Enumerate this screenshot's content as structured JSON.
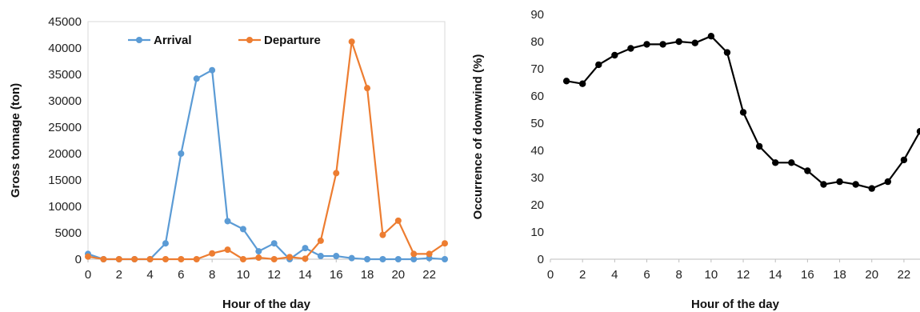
{
  "chart_data": [
    {
      "type": "line",
      "title": "",
      "xlabel": "Hour of the day",
      "ylabel": "Gross tonnage (ton)",
      "xlim": [
        0,
        23
      ],
      "ylim": [
        0,
        45000
      ],
      "x_ticks": [
        0,
        2,
        4,
        6,
        8,
        10,
        12,
        14,
        16,
        18,
        20,
        22
      ],
      "y_ticks": [
        0,
        5000,
        10000,
        15000,
        20000,
        25000,
        30000,
        35000,
        40000,
        45000
      ],
      "grid": false,
      "legend_placement": "top-center",
      "x": [
        0,
        1,
        2,
        3,
        4,
        5,
        6,
        7,
        8,
        9,
        10,
        11,
        12,
        13,
        14,
        15,
        16,
        17,
        18,
        19,
        20,
        21,
        22,
        23
      ],
      "series": [
        {
          "name": "Arrival",
          "color": "#5B9BD5",
          "values": [
            1000,
            0,
            0,
            0,
            0,
            3000,
            20000,
            34200,
            35800,
            7200,
            5700,
            1500,
            3000,
            0,
            2100,
            600,
            600,
            200,
            0,
            0,
            0,
            0,
            200,
            0
          ]
        },
        {
          "name": "Departure",
          "color": "#ED7D31",
          "values": [
            500,
            0,
            0,
            0,
            0,
            0,
            0,
            0,
            1100,
            1800,
            0,
            300,
            0,
            400,
            100,
            3500,
            16300,
            41200,
            32400,
            4600,
            7300,
            1000,
            1000,
            3000
          ]
        }
      ]
    },
    {
      "type": "line",
      "title": "",
      "xlabel": "Hour of the day",
      "ylabel": "Occurrence of downwind (%)",
      "xlim": [
        0,
        23
      ],
      "ylim": [
        0,
        90
      ],
      "x_ticks": [
        0,
        2,
        4,
        6,
        8,
        10,
        12,
        14,
        16,
        18,
        20,
        22
      ],
      "y_ticks": [
        0,
        10,
        20,
        30,
        40,
        50,
        60,
        70,
        80,
        90
      ],
      "grid": false,
      "x": [
        1,
        2,
        3,
        4,
        5,
        6,
        7,
        8,
        9,
        10,
        11,
        12,
        13,
        14,
        15,
        16,
        17,
        18,
        19,
        20,
        21,
        22,
        23
      ],
      "series": [
        {
          "color": "#000000",
          "values": [
            65.5,
            64.5,
            71.5,
            75,
            77.5,
            79,
            79,
            80,
            79.5,
            82,
            76,
            54,
            41.5,
            35.5,
            35.5,
            32.5,
            27.5,
            28.5,
            27.5,
            26,
            28.5,
            36.5,
            47
          ]
        }
      ]
    }
  ]
}
